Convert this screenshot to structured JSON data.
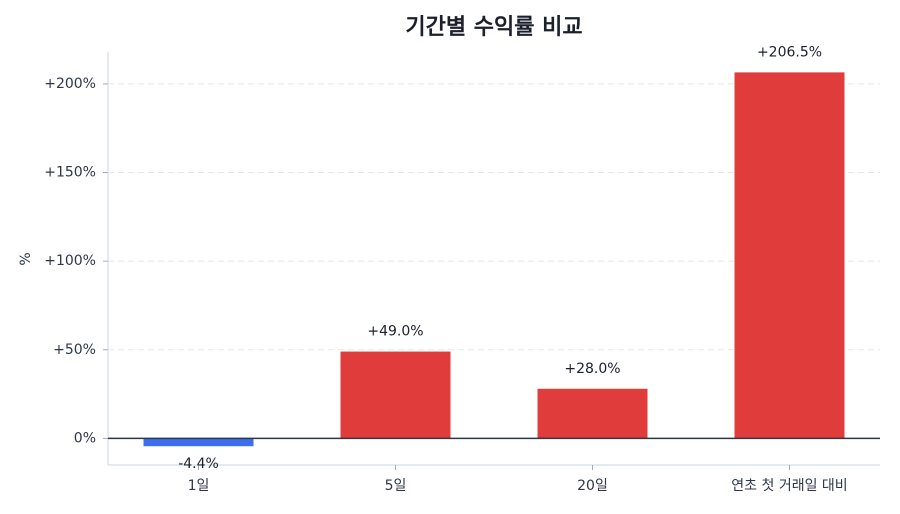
{
  "chart_data": {
    "type": "bar",
    "title": "기간별 수익률 비교",
    "y_label": "%",
    "categories": [
      "1일",
      "5일",
      "20일",
      "연초 첫 거래일 대비"
    ],
    "values": [
      -4.4,
      49.0,
      28.0,
      206.5
    ],
    "value_labels": [
      "-4.4%",
      "+49.0%",
      "+28.0%",
      "+206.5%"
    ],
    "colors": [
      "#3b6ff0",
      "#e03c3c",
      "#e03c3c",
      "#e03c3c"
    ],
    "ylim": [
      -15,
      218
    ],
    "yticks": [
      {
        "value": 0,
        "label": "0%"
      },
      {
        "value": 50,
        "label": "+50%"
      },
      {
        "value": 100,
        "label": "+100%"
      },
      {
        "value": 150,
        "label": "+150%"
      },
      {
        "value": 200,
        "label": "+200%"
      }
    ],
    "grid": true
  }
}
